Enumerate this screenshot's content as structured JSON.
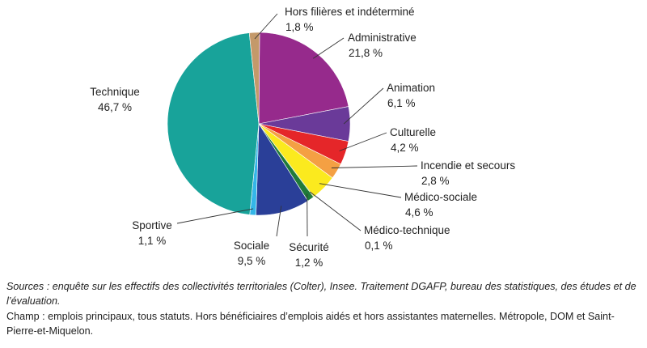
{
  "chart_data": {
    "type": "pie",
    "title": "",
    "slices": [
      {
        "label": "Administrative",
        "value": 21.8,
        "display": "21,8 %",
        "color": "#962a8c"
      },
      {
        "label": "Animation",
        "value": 6.1,
        "display": "6,1 %",
        "color": "#6a3a99"
      },
      {
        "label": "Culturelle",
        "value": 4.2,
        "display": "4,2 %",
        "color": "#e52629"
      },
      {
        "label": "Incendie et secours",
        "value": 2.8,
        "display": "2,8 %",
        "color": "#f4a043"
      },
      {
        "label": "Médico-sociale",
        "value": 4.6,
        "display": "4,6 %",
        "color": "#fbea1e"
      },
      {
        "label": "Médico-technique",
        "value": 0.1,
        "display": "0,1 %",
        "color": "#a8cf45"
      },
      {
        "label": "Sécurité",
        "value": 1.2,
        "display": "1,2 %",
        "color": "#1f7a3a"
      },
      {
        "label": "Sociale",
        "value": 9.5,
        "display": "9,5 %",
        "color": "#2a3f98"
      },
      {
        "label": "Sportive",
        "value": 1.1,
        "display": "1,1 %",
        "color": "#34b6e8"
      },
      {
        "label": "Technique",
        "value": 46.7,
        "display": "46,7 %",
        "color": "#18a39a"
      },
      {
        "label": "Hors filières et indéterminé",
        "value": 1.8,
        "display": "1,8 %",
        "color": "#c4996a"
      }
    ]
  },
  "notes": {
    "sources": "Sources : enquête sur les effectifs des collectivités territoriales (Colter), Insee. Traitement DGAFP, bureau des statistiques, des études et de l’évaluation.",
    "champ": "Champ : emplois principaux, tous statuts. Hors bénéficiaires d’emplois aidés et hors assistantes maternelles. Métropole, DOM et Saint-Pierre-et-Miquelon."
  }
}
